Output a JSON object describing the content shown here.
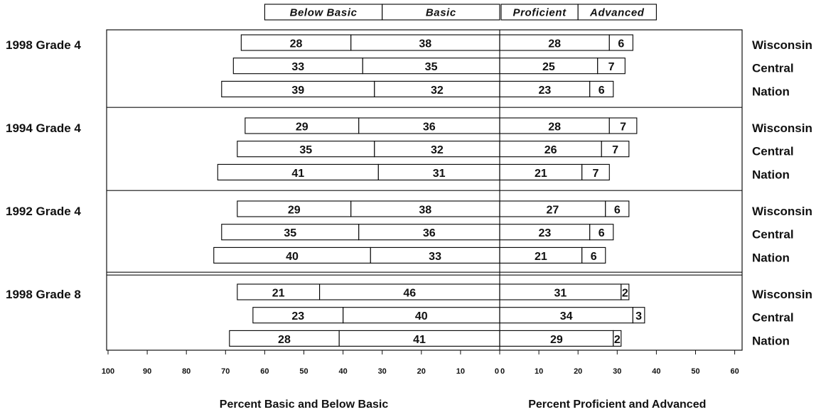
{
  "chart_data": {
    "type": "bar",
    "orientation": "horizontal",
    "stacked": true,
    "legend_position": "top",
    "grid": false,
    "colors": {
      "bar_fill": "#ffffff",
      "bar_stroke": "#000000"
    },
    "left_axis": {
      "label": "Percent Basic and Below Basic",
      "range": [
        100,
        0
      ],
      "ticks": [
        100,
        90,
        80,
        70,
        60,
        50,
        40,
        30,
        20,
        10,
        0
      ],
      "series": [
        "Below Basic",
        "Basic"
      ]
    },
    "right_axis": {
      "label": "Percent Proficient and Advanced",
      "range": [
        0,
        60
      ],
      "ticks": [
        0,
        10,
        20,
        30,
        40,
        50,
        60
      ],
      "series": [
        "Proficient",
        "Advanced"
      ]
    },
    "groups": [
      {
        "label": "1998 Grade 4",
        "rows": [
          {
            "label": "Wisconsin",
            "left": [
              28,
              38
            ],
            "right": [
              28,
              6
            ]
          },
          {
            "label": "Central",
            "left": [
              33,
              35
            ],
            "right": [
              25,
              7
            ]
          },
          {
            "label": "Nation",
            "left": [
              39,
              32
            ],
            "right": [
              23,
              6
            ]
          }
        ]
      },
      {
        "label": "1994 Grade 4",
        "rows": [
          {
            "label": "Wisconsin",
            "left": [
              29,
              36
            ],
            "right": [
              28,
              7
            ]
          },
          {
            "label": "Central",
            "left": [
              35,
              32
            ],
            "right": [
              26,
              7
            ]
          },
          {
            "label": "Nation",
            "left": [
              41,
              31
            ],
            "right": [
              21,
              7
            ]
          }
        ]
      },
      {
        "label": "1992 Grade 4",
        "rows": [
          {
            "label": "Wisconsin",
            "left": [
              29,
              38
            ],
            "right": [
              27,
              6
            ]
          },
          {
            "label": "Central",
            "left": [
              35,
              36
            ],
            "right": [
              23,
              6
            ]
          },
          {
            "label": "Nation",
            "left": [
              40,
              33
            ],
            "right": [
              21,
              6
            ]
          }
        ]
      },
      {
        "label": "1998 Grade 8",
        "rows": [
          {
            "label": "Wisconsin",
            "left": [
              21,
              46
            ],
            "right": [
              31,
              2
            ]
          },
          {
            "label": "Central",
            "left": [
              23,
              40
            ],
            "right": [
              34,
              3
            ]
          },
          {
            "label": "Nation",
            "left": [
              28,
              41
            ],
            "right": [
              29,
              2
            ]
          }
        ]
      }
    ]
  }
}
